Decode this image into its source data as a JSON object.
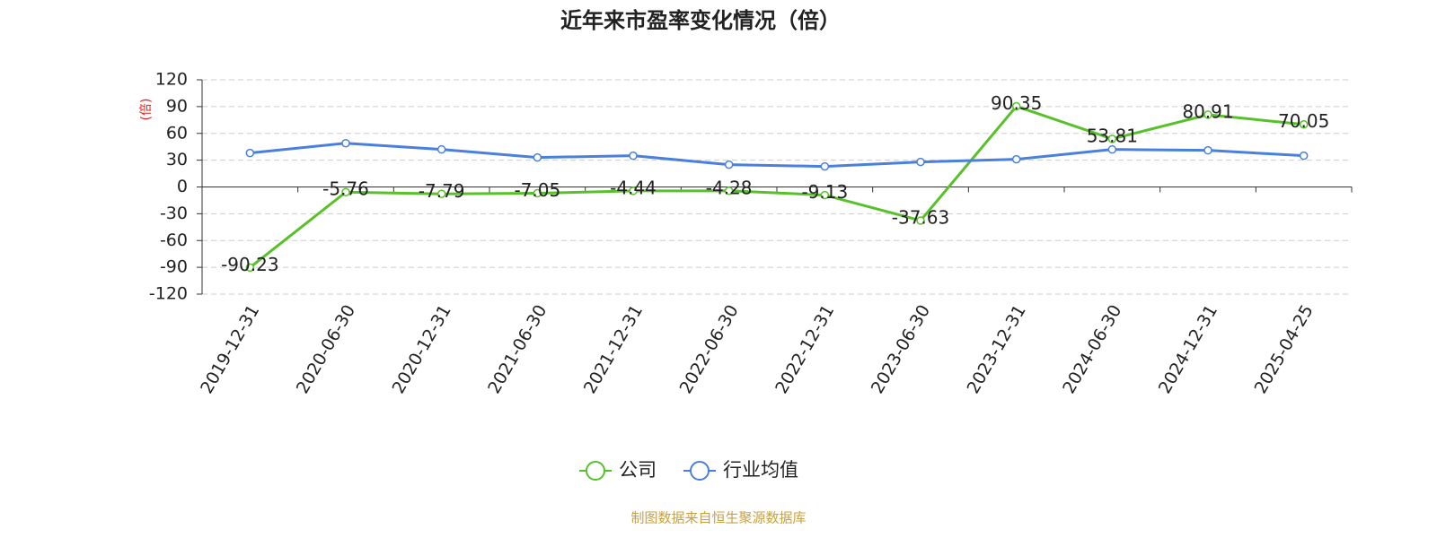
{
  "chart_data": {
    "type": "line",
    "title": "近年来市盈率变化情况（倍）",
    "y_label": "(倍)",
    "categories": [
      "2019-12-31",
      "2020-06-30",
      "2020-12-31",
      "2021-06-30",
      "2021-12-31",
      "2022-06-30",
      "2022-12-31",
      "2023-06-30",
      "2023-12-31",
      "2024-06-30",
      "2024-12-31",
      "2025-04-25"
    ],
    "series": [
      {
        "name": "公司",
        "color": "#58c12a",
        "values": [
          -90.23,
          -5.76,
          -7.79,
          -7.05,
          -4.44,
          -4.28,
          -9.13,
          -37.63,
          90.35,
          53.81,
          80.91,
          70.05
        ],
        "data_labels": true
      },
      {
        "name": "行业均值",
        "color": "#4a80dd",
        "values": [
          38,
          49,
          42,
          33,
          35,
          25,
          23,
          28,
          31,
          42,
          41,
          35
        ],
        "data_labels": false
      }
    ],
    "ylim": [
      -120,
      120
    ],
    "yticks": [
      -120,
      -90,
      -60,
      -30,
      0,
      30,
      60,
      90,
      120
    ],
    "grid": true,
    "source": "制图数据来自恒生聚源数据库"
  }
}
